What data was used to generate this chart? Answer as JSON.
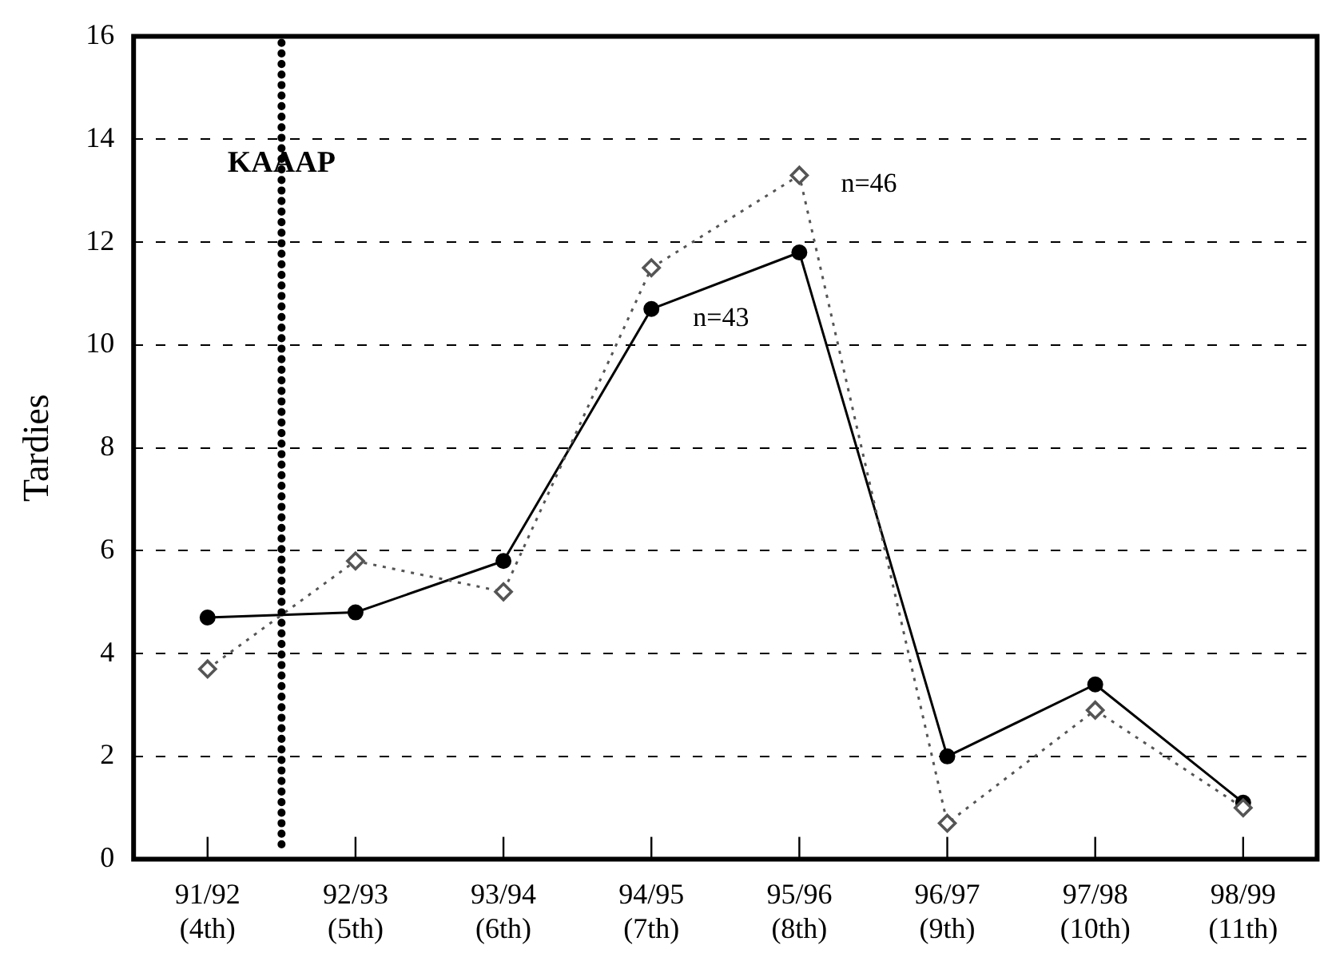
{
  "chart_data": {
    "type": "line",
    "ylabel": "Tardies",
    "categories": [
      "91/92 (4th)",
      "92/93 (5th)",
      "93/94 (6th)",
      "94/95 (7th)",
      "95/96 (8th)",
      "96/97 (9th)",
      "97/98 (10th)",
      "98/99 (11th)"
    ],
    "series": [
      {
        "color": "#000000",
        "marker": "circle",
        "line_style": "solid",
        "values": [
          4.7,
          4.8,
          5.8,
          10.7,
          11.8,
          2.0,
          3.4,
          1.1
        ]
      },
      {
        "color": "#555555",
        "marker": "diamond",
        "line_style": "dotted",
        "values": [
          3.7,
          5.8,
          5.2,
          11.5,
          13.3,
          0.7,
          2.9,
          1.0
        ]
      }
    ],
    "ylim": [
      0,
      16
    ],
    "yticks": [
      0,
      2,
      4,
      6,
      8,
      10,
      12,
      14,
      16
    ],
    "grid": "y",
    "legend": false,
    "ref_lines": [
      {
        "axis": "x",
        "value": "92/93 (5th)",
        "label": "KAAAP",
        "line_style": "dotted",
        "color": "#000000"
      }
    ],
    "annotations": [
      {
        "text": "n=43",
        "x": "94/95 (7th)",
        "y": 10.7
      },
      {
        "text": "n=46",
        "x": "95/96 (8th)",
        "y": 13.3
      }
    ]
  }
}
